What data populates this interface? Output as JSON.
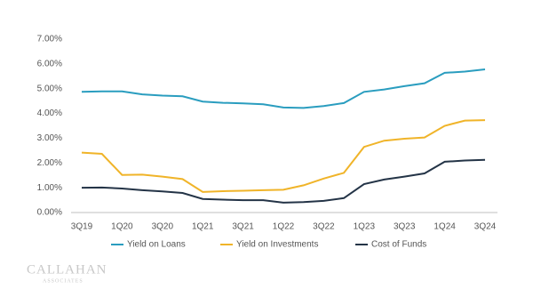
{
  "chart_data": {
    "type": "line",
    "categories": [
      "3Q19",
      null,
      "1Q20",
      null,
      "3Q20",
      null,
      "1Q21",
      null,
      "3Q21",
      null,
      "1Q22",
      null,
      "3Q22",
      null,
      "1Q23",
      null,
      "3Q23",
      null,
      "1Q24",
      null,
      "3Q24"
    ],
    "series": [
      {
        "name": "Yield on Loans",
        "color": "#2a9dbf",
        "values": [
          4.87,
          4.89,
          4.89,
          4.77,
          4.72,
          4.69,
          4.48,
          4.43,
          4.41,
          4.37,
          4.24,
          4.22,
          4.3,
          4.42,
          4.87,
          4.97,
          5.1,
          5.22,
          5.64,
          5.69,
          5.78
        ]
      },
      {
        "name": "Yield on Investments",
        "color": "#f0b429",
        "values": [
          2.42,
          2.37,
          1.52,
          1.53,
          1.45,
          1.35,
          0.83,
          0.86,
          0.88,
          0.9,
          0.92,
          1.1,
          1.37,
          1.6,
          2.65,
          2.9,
          2.98,
          3.03,
          3.5,
          3.71,
          3.73
        ]
      },
      {
        "name": "Cost of Funds",
        "color": "#243447",
        "values": [
          1.0,
          1.01,
          0.97,
          0.9,
          0.85,
          0.79,
          0.55,
          0.52,
          0.5,
          0.5,
          0.4,
          0.42,
          0.47,
          0.58,
          1.15,
          1.33,
          1.45,
          1.58,
          2.05,
          2.1,
          2.13
        ]
      }
    ],
    "ylim": [
      0,
      7
    ],
    "yticks": [
      {
        "value": 0,
        "label": "0.00%"
      },
      {
        "value": 1,
        "label": "1.00%"
      },
      {
        "value": 2,
        "label": "2.00%"
      },
      {
        "value": 3,
        "label": "3.00%"
      },
      {
        "value": 4,
        "label": "4.00%"
      },
      {
        "value": 5,
        "label": "5.00%"
      },
      {
        "value": 6,
        "label": "6.00%"
      },
      {
        "value": 7,
        "label": "7.00%"
      }
    ],
    "grid": false,
    "legend": "bottom"
  },
  "footer": {
    "logo": "CALLAHAN",
    "sub": "ASSOCIATES"
  }
}
